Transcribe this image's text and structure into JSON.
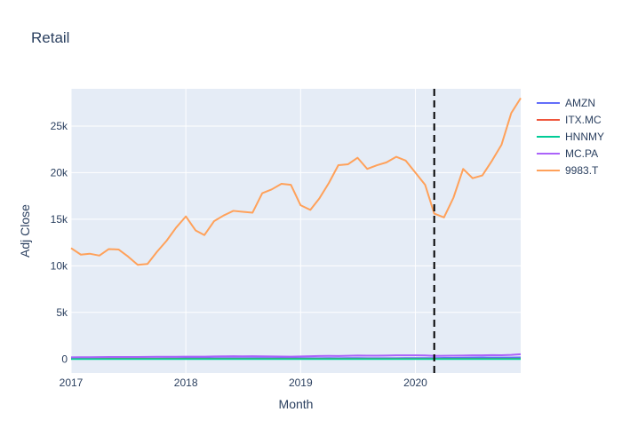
{
  "chart_data": {
    "type": "line",
    "title": "Retail",
    "xlabel": "Month",
    "ylabel": "Adj Close",
    "x_range": [
      "2017-01-01",
      "2020-12-01"
    ],
    "ylim": [
      -1500,
      29000
    ],
    "x_ticks": [
      {
        "date": "2017-01-01",
        "label": "2017"
      },
      {
        "date": "2018-01-01",
        "label": "2018"
      },
      {
        "date": "2019-01-01",
        "label": "2019"
      },
      {
        "date": "2020-01-01",
        "label": "2020"
      }
    ],
    "y_ticks": [
      {
        "value": 0,
        "label": "0"
      },
      {
        "value": 5000,
        "label": "5k"
      },
      {
        "value": 10000,
        "label": "10k"
      },
      {
        "value": 15000,
        "label": "15k"
      },
      {
        "value": 20000,
        "label": "20k"
      },
      {
        "value": 25000,
        "label": "25k"
      }
    ],
    "grid": true,
    "legend_position": "top-right",
    "vline": {
      "date": "2020-03-01",
      "style": "dashed",
      "color": "#000000"
    },
    "x": [
      "2017-01-01",
      "2017-02-01",
      "2017-03-01",
      "2017-04-01",
      "2017-05-01",
      "2017-06-01",
      "2017-07-01",
      "2017-08-01",
      "2017-09-01",
      "2017-10-01",
      "2017-11-01",
      "2017-12-01",
      "2018-01-01",
      "2018-02-01",
      "2018-03-01",
      "2018-04-01",
      "2018-05-01",
      "2018-06-01",
      "2018-07-01",
      "2018-08-01",
      "2018-09-01",
      "2018-10-01",
      "2018-11-01",
      "2018-12-01",
      "2019-01-01",
      "2019-02-01",
      "2019-03-01",
      "2019-04-01",
      "2019-05-01",
      "2019-06-01",
      "2019-07-01",
      "2019-08-01",
      "2019-09-01",
      "2019-10-01",
      "2019-11-01",
      "2019-12-01",
      "2020-01-01",
      "2020-02-01",
      "2020-03-01",
      "2020-04-01",
      "2020-05-01",
      "2020-06-01",
      "2020-07-01",
      "2020-08-01",
      "2020-09-01",
      "2020-10-01",
      "2020-11-01",
      "2020-12-01"
    ],
    "series": [
      {
        "name": "AMZN",
        "color": "#636efa",
        "values": [
          41,
          42,
          44,
          46,
          49,
          48,
          49,
          49,
          48,
          55,
          59,
          58,
          72,
          75,
          72,
          78,
          81,
          85,
          89,
          100,
          100,
          80,
          84,
          75,
          86,
          81,
          89,
          96,
          89,
          94,
          93,
          89,
          87,
          89,
          90,
          93,
          100,
          94,
          97,
          123,
          122,
          137,
          159,
          172,
          157,
          151,
          158,
          162
        ]
      },
      {
        "name": "ITX.MC",
        "color": "#ef553b",
        "values": [
          29,
          30,
          32,
          34,
          34,
          33,
          33,
          32,
          30,
          31,
          30,
          28,
          27,
          26,
          24,
          26,
          26,
          25,
          26,
          27,
          25,
          25,
          25,
          24,
          22,
          24,
          25,
          26,
          25,
          25,
          26,
          26,
          26,
          26,
          27,
          27,
          28,
          27,
          25,
          21,
          23,
          25,
          25,
          24,
          22,
          22,
          25,
          26
        ]
      },
      {
        "name": "HNNMY",
        "color": "#00cc96",
        "values": [
          6,
          6,
          5,
          5,
          5,
          5,
          5,
          5,
          5,
          5,
          5,
          4,
          4,
          3,
          3,
          3,
          3,
          3,
          3,
          3,
          3,
          3,
          3,
          3,
          3,
          3,
          3,
          3,
          3,
          3,
          3,
          3,
          3,
          4,
          4,
          4,
          4,
          4,
          3,
          3,
          3,
          3,
          3,
          3,
          3,
          3,
          3,
          4
        ]
      },
      {
        "name": "MC.PA",
        "color": "#ab63fa",
        "values": [
          180,
          190,
          195,
          205,
          215,
          215,
          220,
          220,
          230,
          240,
          245,
          240,
          250,
          255,
          250,
          275,
          285,
          300,
          290,
          295,
          290,
          270,
          260,
          255,
          280,
          300,
          320,
          330,
          320,
          350,
          365,
          355,
          360,
          370,
          390,
          400,
          400,
          380,
          340,
          350,
          360,
          375,
          390,
          400,
          420,
          410,
          445,
          510
        ]
      },
      {
        "name": "9983.T",
        "color": "#ffa15a",
        "values": [
          11900,
          11200,
          11300,
          11100,
          11800,
          11750,
          11000,
          10100,
          10200,
          11500,
          12700,
          14100,
          15300,
          13800,
          13300,
          14800,
          15400,
          15900,
          15800,
          15700,
          17800,
          18200,
          18800,
          18700,
          16500,
          16000,
          17200,
          18900,
          20800,
          20900,
          21600,
          20400,
          20800,
          21100,
          21700,
          21300,
          20000,
          18700,
          15600,
          15200,
          17300,
          20400,
          19400,
          19700,
          21300,
          23000,
          26400,
          28000
        ]
      }
    ]
  }
}
